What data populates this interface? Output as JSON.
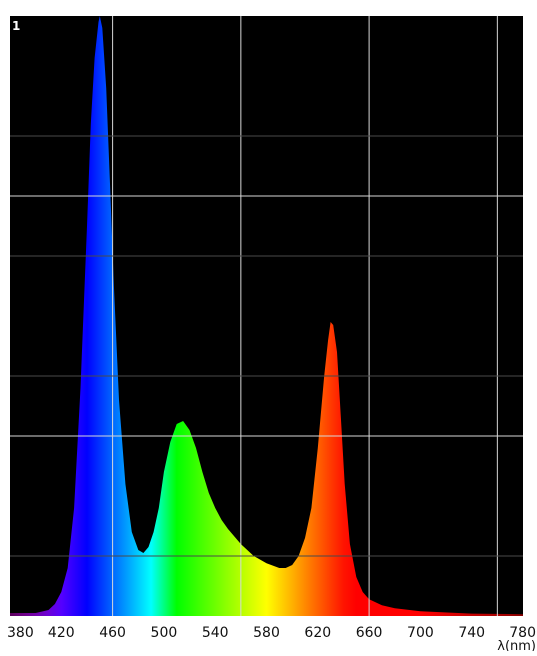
{
  "chart_data": {
    "type": "area",
    "title": "",
    "xlabel": "λ(nm)",
    "ylabel": "",
    "xlim": [
      380,
      780
    ],
    "ylim": [
      0,
      1
    ],
    "x_ticks": [
      380,
      420,
      460,
      500,
      540,
      580,
      620,
      660,
      700,
      740,
      780
    ],
    "y_tick_labels": [
      "1"
    ],
    "grid": true,
    "background": "#000000",
    "series": [
      {
        "fill": "wavelength-rainbow",
        "points": [
          [
            380,
            0.005
          ],
          [
            400,
            0.005
          ],
          [
            410,
            0.01
          ],
          [
            415,
            0.02
          ],
          [
            420,
            0.04
          ],
          [
            425,
            0.08
          ],
          [
            430,
            0.18
          ],
          [
            435,
            0.38
          ],
          [
            440,
            0.65
          ],
          [
            443,
            0.82
          ],
          [
            446,
            0.93
          ],
          [
            449,
            0.99
          ],
          [
            450,
            1.0
          ],
          [
            452,
            0.98
          ],
          [
            455,
            0.88
          ],
          [
            458,
            0.72
          ],
          [
            461,
            0.55
          ],
          [
            465,
            0.36
          ],
          [
            470,
            0.22
          ],
          [
            475,
            0.14
          ],
          [
            480,
            0.11
          ],
          [
            484,
            0.105
          ],
          [
            488,
            0.115
          ],
          [
            492,
            0.14
          ],
          [
            496,
            0.18
          ],
          [
            500,
            0.24
          ],
          [
            505,
            0.29
          ],
          [
            510,
            0.32
          ],
          [
            515,
            0.325
          ],
          [
            520,
            0.31
          ],
          [
            525,
            0.28
          ],
          [
            530,
            0.24
          ],
          [
            535,
            0.205
          ],
          [
            540,
            0.18
          ],
          [
            545,
            0.16
          ],
          [
            550,
            0.145
          ],
          [
            560,
            0.12
          ],
          [
            570,
            0.1
          ],
          [
            580,
            0.088
          ],
          [
            590,
            0.08
          ],
          [
            595,
            0.08
          ],
          [
            600,
            0.085
          ],
          [
            605,
            0.1
          ],
          [
            610,
            0.13
          ],
          [
            615,
            0.18
          ],
          [
            620,
            0.28
          ],
          [
            625,
            0.4
          ],
          [
            628,
            0.46
          ],
          [
            630,
            0.49
          ],
          [
            632,
            0.485
          ],
          [
            635,
            0.44
          ],
          [
            638,
            0.33
          ],
          [
            641,
            0.22
          ],
          [
            645,
            0.12
          ],
          [
            650,
            0.065
          ],
          [
            655,
            0.04
          ],
          [
            660,
            0.028
          ],
          [
            670,
            0.018
          ],
          [
            680,
            0.013
          ],
          [
            700,
            0.008
          ],
          [
            740,
            0.004
          ],
          [
            780,
            0.003
          ]
        ]
      }
    ]
  }
}
